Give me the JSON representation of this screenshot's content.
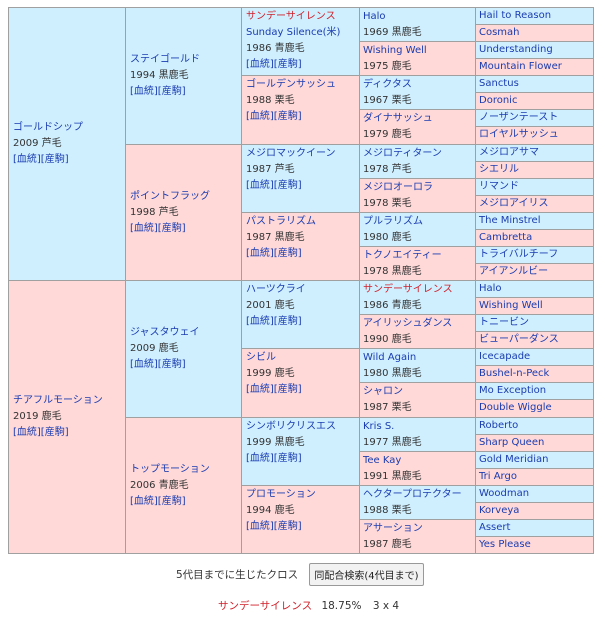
{
  "gen1": [
    {
      "name": "ゴールドシップ",
      "meta": "2009 芦毛",
      "link1": "血統",
      "link2": "産駒"
    },
    {
      "name": "チアフルモーション",
      "meta": "2019 鹿毛",
      "link1": "血統",
      "link2": "産駒"
    }
  ],
  "gen2": [
    {
      "name": "ステイゴールド",
      "meta": "1994 黒鹿毛",
      "link1": "血統",
      "link2": "産駒"
    },
    {
      "name": "ポイントフラッグ",
      "meta": "1998 芦毛",
      "link1": "血統",
      "link2": "産駒"
    },
    {
      "name": "ジャスタウェイ",
      "meta": "2009 鹿毛",
      "link1": "血統",
      "link2": "産駒"
    },
    {
      "name": "トップモーション",
      "meta": "2006 青鹿毛",
      "link1": "血統",
      "link2": "産駒"
    }
  ],
  "gen3": [
    {
      "name": "サンデーサイレンス",
      "en": "Sunday Silence(米)",
      "meta": "1986 青鹿毛",
      "link1": "血統",
      "link2": "産駒"
    },
    {
      "name": "ゴールデンサッシュ",
      "meta": "1988 栗毛",
      "link1": "血統",
      "link2": "産駒"
    },
    {
      "name": "メジロマックイーン",
      "meta": "1987 芦毛",
      "link1": "血統",
      "link2": "産駒"
    },
    {
      "name": "パストラリズム",
      "meta": "1987 黒鹿毛",
      "link1": "血統",
      "link2": "産駒"
    },
    {
      "name": "ハーツクライ",
      "meta": "2001 鹿毛",
      "link1": "血統",
      "link2": "産駒"
    },
    {
      "name": "シビル",
      "meta": "1999 鹿毛",
      "link1": "血統",
      "link2": "産駒"
    },
    {
      "name": "シンボリクリスエス",
      "meta": "1999 黒鹿毛",
      "link1": "血統",
      "link2": "産駒"
    },
    {
      "name": "プロモーション",
      "meta": "1994 鹿毛",
      "link1": "血統",
      "link2": "産駒"
    }
  ],
  "gen4": [
    {
      "name": "Halo",
      "meta": "1969 黒鹿毛"
    },
    {
      "name": "Wishing Well",
      "meta": "1975 鹿毛"
    },
    {
      "name": "ディクタス",
      "meta": "1967 栗毛"
    },
    {
      "name": "ダイナサッシュ",
      "meta": "1979 鹿毛"
    },
    {
      "name": "メジロティターン",
      "meta": "1978 芦毛"
    },
    {
      "name": "メジロオーロラ",
      "meta": "1978 栗毛"
    },
    {
      "name": "プルラリズム",
      "meta": "1980 鹿毛"
    },
    {
      "name": "トクノエイティー",
      "meta": "1978 黒鹿毛"
    },
    {
      "name": "サンデーサイレンス",
      "meta": "1986 青鹿毛"
    },
    {
      "name": "アイリッシュダンス",
      "meta": "1990 鹿毛"
    },
    {
      "name": "Wild Again",
      "meta": "1980 黒鹿毛"
    },
    {
      "name": "シャロン",
      "meta": "1987 栗毛"
    },
    {
      "name": "Kris S.",
      "meta": "1977 黒鹿毛"
    },
    {
      "name": "Tee Kay",
      "meta": "1991 黒鹿毛"
    },
    {
      "name": "ヘクタープロテクター",
      "meta": "1988 栗毛"
    },
    {
      "name": "アサーション",
      "meta": "1987 鹿毛"
    }
  ],
  "gen5": [
    "Hail to Reason",
    "Cosmah",
    "Understanding",
    "Mountain Flower",
    "Sanctus",
    "Doronic",
    "ノーザンテースト",
    "ロイヤルサッシュ",
    "メジロアサマ",
    "シエリル",
    "リマンド",
    "メジロアイリス",
    "The Minstrel",
    "Cambretta",
    "トライバルチーフ",
    "アイアンルビー",
    "Halo",
    "Wishing Well",
    "トニービン",
    "ビューパーダンス",
    "Icecapade",
    "Bushel-n-Peck",
    "Mo Exception",
    "Double Wiggle",
    "Roberto",
    "Sharp Queen",
    "Gold Meridian",
    "Tri Argo",
    "Woodman",
    "Korveya",
    "Assert",
    "Yes Please"
  ],
  "cross": {
    "label": "5代目までに生じたクロス",
    "button": "同配合検索(4代目まで)",
    "horse": "サンデーサイレンス",
    "percent": "18.75%",
    "pattern": "3 x 4"
  },
  "colors": {
    "male": "#cfefff",
    "female": "#ffd8d8",
    "link": "#1a3cb0",
    "highlight": "#d0202a"
  }
}
